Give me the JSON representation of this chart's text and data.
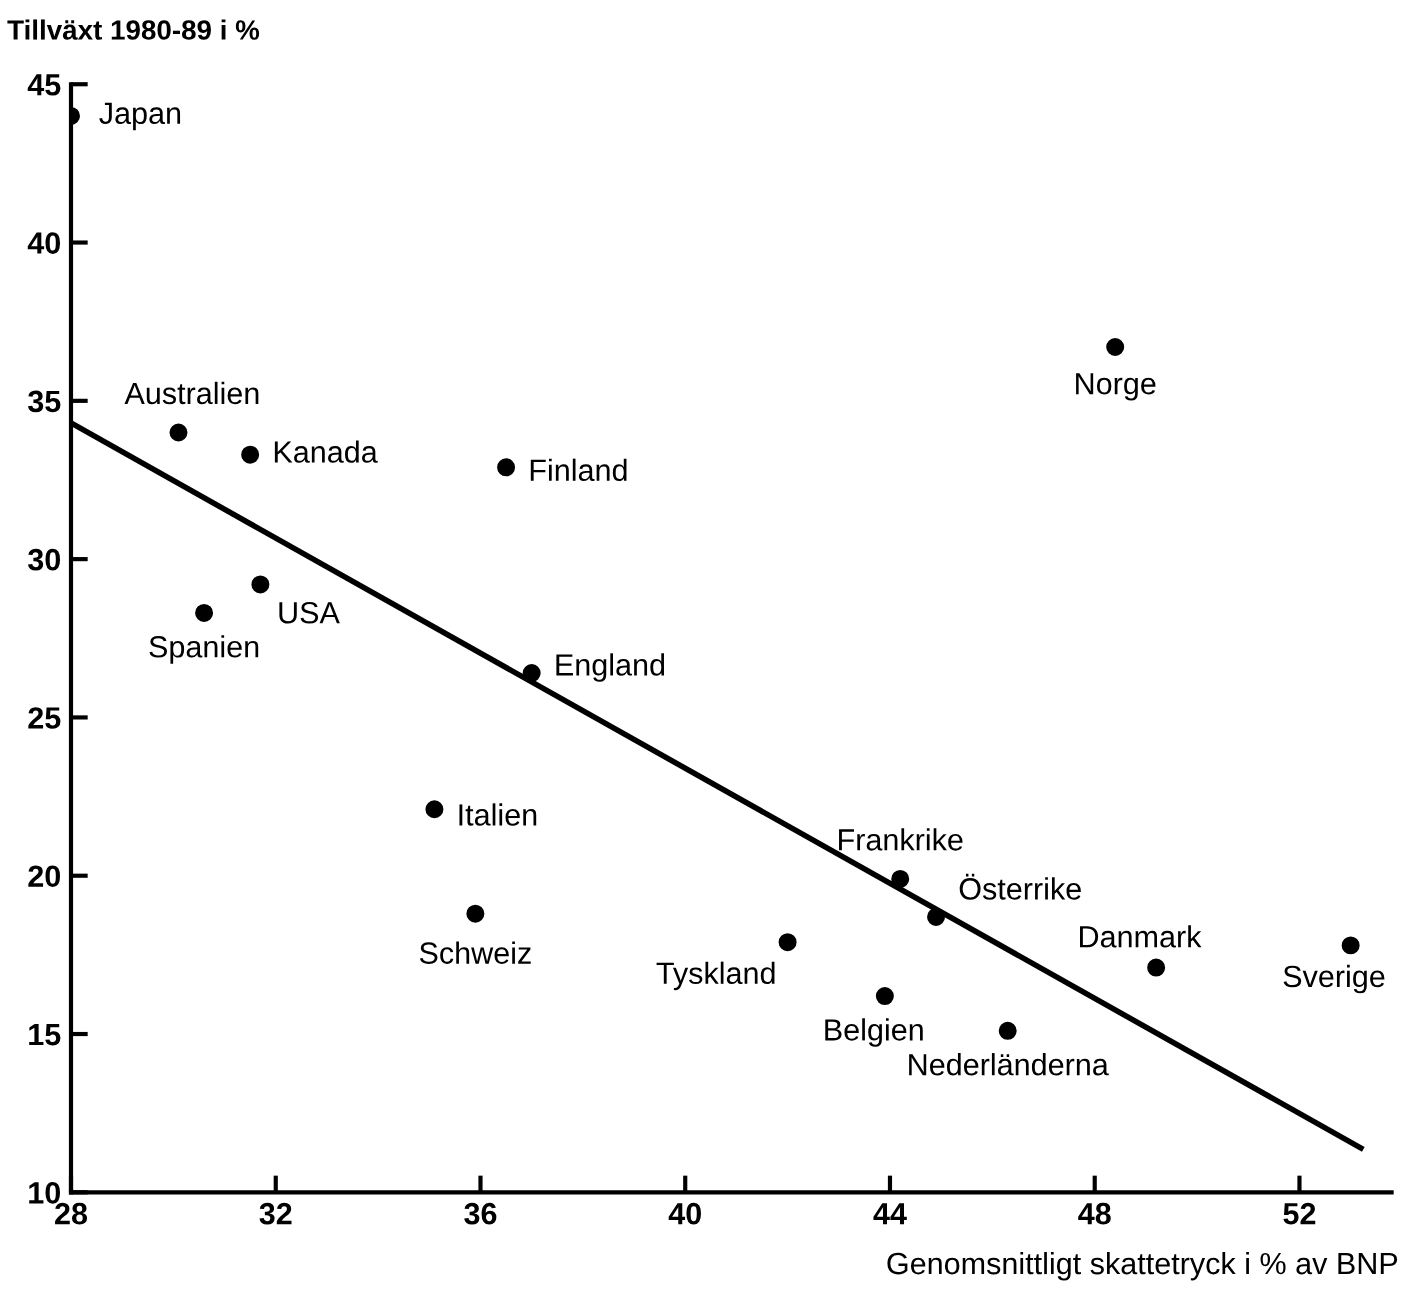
{
  "chart_data": {
    "type": "scatter",
    "xlabel": "Genomsnittligt skattetryck i % av BNP",
    "ylabel": "Tillväxt 1980-89 i %",
    "xlim": [
      28,
      53.8
    ],
    "xticks": [
      28,
      32,
      36,
      40,
      44,
      48,
      52
    ],
    "ylim": [
      10,
      45
    ],
    "yticks": [
      10,
      15,
      20,
      25,
      30,
      35,
      40,
      45
    ],
    "grid": false,
    "legend": false,
    "series": [
      {
        "marker": "circle",
        "color": "#000000",
        "x": [
          28.0,
          30.1,
          31.5,
          36.5,
          48.4,
          31.7,
          30.6,
          37.0,
          35.1,
          35.9,
          42.0,
          44.2,
          44.9,
          43.9,
          46.3,
          49.2,
          53.0
        ],
        "values": [
          44.0,
          34.0,
          33.3,
          32.9,
          36.7,
          29.2,
          28.3,
          26.4,
          22.1,
          18.8,
          17.9,
          19.9,
          18.7,
          16.2,
          15.1,
          17.1,
          17.8
        ]
      },
      {
        "type": "line",
        "color": "#000000",
        "line_style": "solid",
        "marker": "none",
        "x": [
          28.0,
          53.2
        ],
        "values": [
          34.3,
          11.4
        ]
      }
    ],
    "annotations": [
      {
        "text": "Japan",
        "x": 28.0,
        "y": 44.0
      },
      {
        "text": "Australien",
        "x": 30.1,
        "y": 34.0
      },
      {
        "text": "Kanada",
        "x": 31.5,
        "y": 33.3
      },
      {
        "text": "Finland",
        "x": 36.5,
        "y": 32.9
      },
      {
        "text": "Norge",
        "x": 48.4,
        "y": 36.7
      },
      {
        "text": "USA",
        "x": 31.7,
        "y": 29.2
      },
      {
        "text": "Spanien",
        "x": 30.6,
        "y": 28.3
      },
      {
        "text": "England",
        "x": 37.0,
        "y": 26.4
      },
      {
        "text": "Italien",
        "x": 35.1,
        "y": 22.1
      },
      {
        "text": "Schweiz",
        "x": 35.9,
        "y": 18.8
      },
      {
        "text": "Tyskland",
        "x": 42.0,
        "y": 17.9
      },
      {
        "text": "Frankrike",
        "x": 44.2,
        "y": 19.9
      },
      {
        "text": "Österrike",
        "x": 44.9,
        "y": 18.7
      },
      {
        "text": "Belgien",
        "x": 43.9,
        "y": 16.2
      },
      {
        "text": "Nederländerna",
        "x": 46.3,
        "y": 15.1
      },
      {
        "text": "Danmark",
        "x": 49.2,
        "y": 17.1
      },
      {
        "text": "Sverige",
        "x": 53.0,
        "y": 17.8
      }
    ]
  }
}
